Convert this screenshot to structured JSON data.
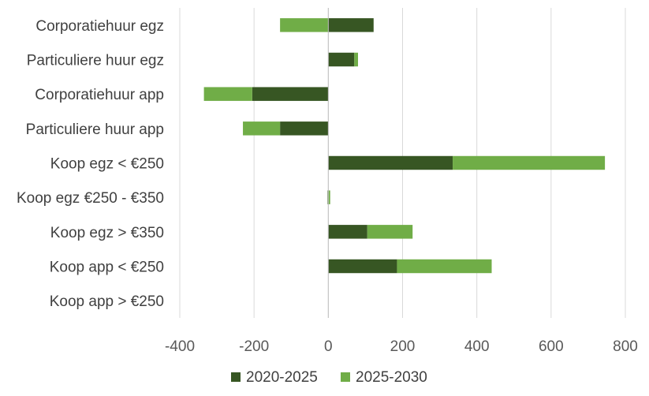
{
  "chart_data": {
    "type": "bar",
    "orientation": "horizontal",
    "stacked": true,
    "categories": [
      "Corporatiehuur egz",
      "Particuliere huur egz",
      "Corporatiehuur app",
      "Particuliere huur app",
      "Koop egz < €250",
      "Koop egz €250 - €350",
      "Koop egz > €350",
      "Koop app < €250",
      "Koop app > €250"
    ],
    "series": [
      {
        "name": "2020-2025",
        "color": "#375623",
        "values": [
          122,
          70,
          -205,
          -130,
          335,
          -2,
          105,
          185,
          0
        ]
      },
      {
        "name": "2025-2030",
        "color": "#70AD47",
        "values": [
          -130,
          10,
          -130,
          -100,
          410,
          5,
          122,
          255,
          0
        ]
      }
    ],
    "xlim": [
      -400,
      800
    ],
    "xticks": [
      -400,
      -200,
      0,
      200,
      400,
      600,
      800
    ],
    "tick_labels": [
      "-400",
      "-200",
      "0",
      "200",
      "400",
      "600",
      "800"
    ],
    "grid": true,
    "legend_position": "bottom",
    "title": "",
    "xlabel": "",
    "ylabel": ""
  }
}
